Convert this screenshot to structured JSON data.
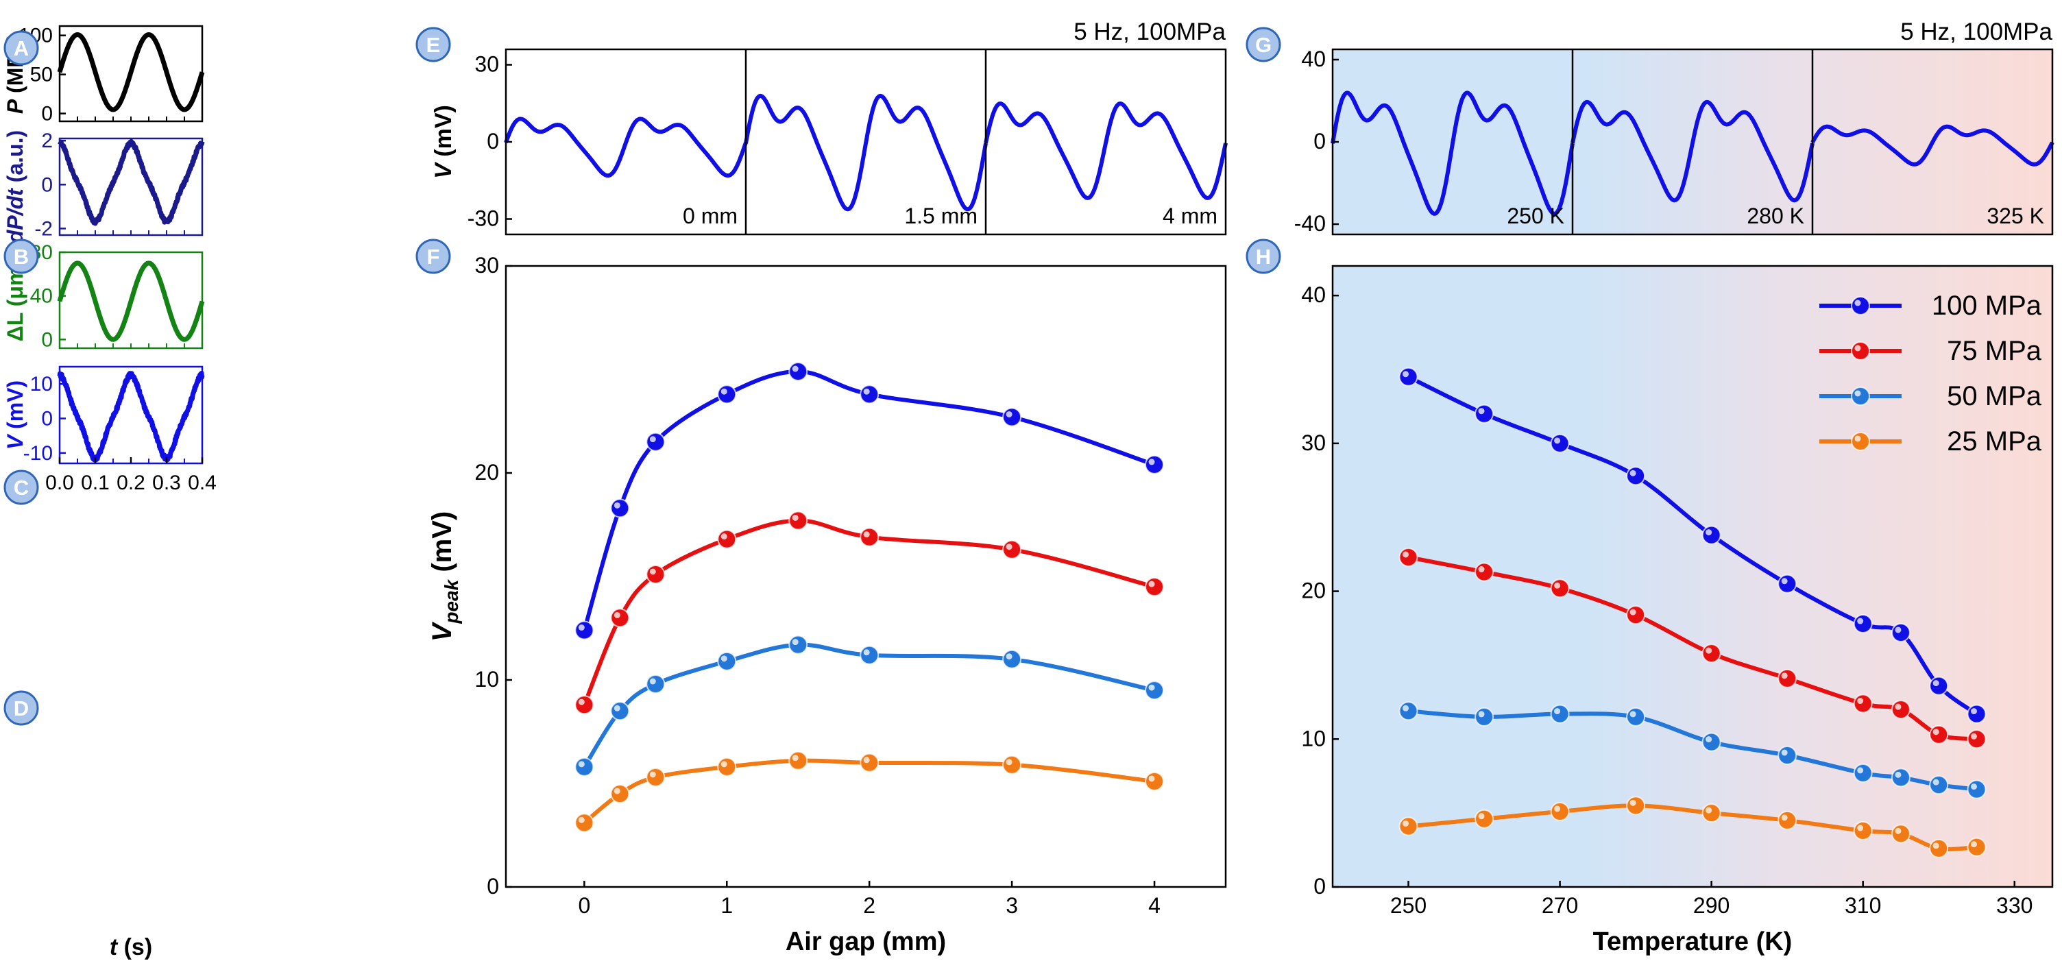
{
  "colors": {
    "black": "#000000",
    "navy": "#1a1a8c",
    "green": "#138313",
    "blue": "#1010e6",
    "red": "#e61010",
    "lightblue": "#2277d9",
    "orange": "#f27a14",
    "panel_badge_fill": "#a9c4ea",
    "panel_badge_stroke": "#2f66b7",
    "bg_cold": "#cfe4f7",
    "bg_mid": "#e9e0ea",
    "bg_hot": "#fbdcd6"
  },
  "chart_data": [
    {
      "panel": "A",
      "type": "line",
      "ylabel": "P (MPa)",
      "ylabel_italic": "P",
      "ylabel_unit": " (MPa)",
      "xlim": [
        0,
        0.4
      ],
      "ylim": [
        -10,
        112
      ],
      "yticks": [
        0,
        50,
        100
      ],
      "waveform": {
        "kind": "sine",
        "offset": 53,
        "amp": 48,
        "freq": 5,
        "phase": 0.0
      },
      "color_key": "black"
    },
    {
      "panel": "B",
      "type": "line",
      "ylabel": "dP/dt (a.u.)",
      "ylabel_italic": "dP/dt",
      "ylabel_unit": " (a.u.)",
      "xlim": [
        0,
        0.4
      ],
      "ylim": [
        -2.3,
        2.1
      ],
      "yticks": [
        -2,
        0,
        2
      ],
      "waveform": {
        "kind": "noisy-cos",
        "offset": 0.1,
        "amp": 1.6,
        "freq": 5,
        "phase": 0.0,
        "noise": 0.08
      },
      "color_key": "navy"
    },
    {
      "panel": "C",
      "type": "line",
      "ylabel": "ΔL (μm)",
      "ylabel_italic": "",
      "ylabel_unit": "ΔL (μm)",
      "xlim": [
        0,
        0.4
      ],
      "ylim": [
        -8,
        80
      ],
      "yticks": [
        0,
        40,
        80
      ],
      "waveform": {
        "kind": "sine",
        "offset": 35,
        "amp": 35,
        "freq": 5,
        "phase": 0.0
      },
      "color_key": "green"
    },
    {
      "panel": "D",
      "type": "line",
      "ylabel": "V (mV)",
      "ylabel_italic": "V",
      "ylabel_unit": " (mV)",
      "xlabel": "t (s)",
      "xlabel_italic": "t",
      "xlabel_unit": " (s)",
      "xlim": [
        0,
        0.4
      ],
      "ylim": [
        -13,
        15
      ],
      "yticks": [
        -10,
        0,
        10
      ],
      "xticks": [
        0.0,
        0.1,
        0.2,
        0.3,
        0.4
      ],
      "xtick_labels": [
        "0.0",
        "0.1",
        "0.2",
        "0.3",
        "0.4"
      ],
      "waveform": {
        "kind": "noisy-cos",
        "offset": 0.5,
        "amp": 10.8,
        "freq": 5,
        "phase": 0.0,
        "noise": 0.6
      },
      "color_key": "blue"
    },
    {
      "panel": "E",
      "type": "line",
      "title": "5 Hz, 100MPa",
      "ylabel": "V (mV)",
      "ylabel_italic": "V",
      "ylabel_unit": " (mV)",
      "ylim": [
        -36,
        36
      ],
      "yticks": [
        -30,
        0,
        30
      ],
      "subpanels": [
        {
          "label": "0 mm",
          "amp": 12
        },
        {
          "label": "1.5 mm",
          "amp": 24
        },
        {
          "label": "4 mm",
          "amp": 20
        }
      ],
      "color_key": "blue"
    },
    {
      "panel": "F",
      "type": "line",
      "xlabel": "Air gap (mm)",
      "ylabel": "Vpeak (mV)",
      "ylabel_main": "V",
      "ylabel_sub": "peak",
      "ylabel_unit": " (mV)",
      "xlim": [
        -0.55,
        4.5
      ],
      "ylim": [
        0,
        30
      ],
      "xticks": [
        0,
        1,
        2,
        3,
        4
      ],
      "yticks": [
        0,
        10,
        20,
        30
      ],
      "x": [
        0,
        0.25,
        0.5,
        1,
        1.5,
        2,
        3,
        4
      ],
      "series": [
        {
          "color_key": "blue",
          "values": [
            12.4,
            18.3,
            21.5,
            23.8,
            24.9,
            23.8,
            22.7,
            20.4
          ]
        },
        {
          "color_key": "red",
          "values": [
            8.8,
            13.0,
            15.1,
            16.8,
            17.7,
            16.9,
            16.3,
            14.5
          ]
        },
        {
          "color_key": "lightblue",
          "values": [
            5.8,
            8.5,
            9.8,
            10.9,
            11.7,
            11.2,
            11.0,
            9.5
          ]
        },
        {
          "color_key": "orange",
          "values": [
            3.1,
            4.5,
            5.3,
            5.8,
            6.1,
            6.0,
            5.9,
            5.1
          ]
        }
      ]
    },
    {
      "panel": "G",
      "type": "line",
      "title": "5 Hz, 100MPa",
      "ylim": [
        -45,
        45
      ],
      "yticks": [
        -40,
        0,
        40
      ],
      "subpanels": [
        {
          "label": "250 K",
          "amp": 32
        },
        {
          "label": "280 K",
          "amp": 26
        },
        {
          "label": "325 K",
          "amp": 10
        }
      ],
      "color_key": "blue"
    },
    {
      "panel": "H",
      "type": "line",
      "xlabel": "Temperature (K)",
      "xlim": [
        240,
        335
      ],
      "ylim": [
        0,
        42
      ],
      "xticks": [
        250,
        270,
        290,
        310,
        330
      ],
      "yticks": [
        0,
        10,
        20,
        30,
        40
      ],
      "x": [
        250,
        260,
        270,
        280,
        290,
        300,
        310,
        315,
        320,
        325
      ],
      "series": [
        {
          "name": "100 MPa",
          "color_key": "blue",
          "values": [
            34.5,
            32.0,
            30.0,
            27.8,
            23.8,
            20.5,
            17.8,
            17.2,
            13.6,
            11.7
          ]
        },
        {
          "name": "75 MPa",
          "color_key": "red",
          "values": [
            22.3,
            21.3,
            20.2,
            18.4,
            15.8,
            14.1,
            12.4,
            12.0,
            10.3,
            10.0
          ]
        },
        {
          "name": "50 MPa",
          "color_key": "lightblue",
          "values": [
            11.9,
            11.5,
            11.7,
            11.5,
            9.8,
            8.9,
            7.7,
            7.4,
            6.9,
            6.6
          ]
        },
        {
          "name": "25 MPa",
          "color_key": "orange",
          "values": [
            4.1,
            4.6,
            5.1,
            5.5,
            5.0,
            4.5,
            3.8,
            3.6,
            2.6,
            2.7
          ]
        }
      ],
      "legend": "top-right"
    }
  ]
}
